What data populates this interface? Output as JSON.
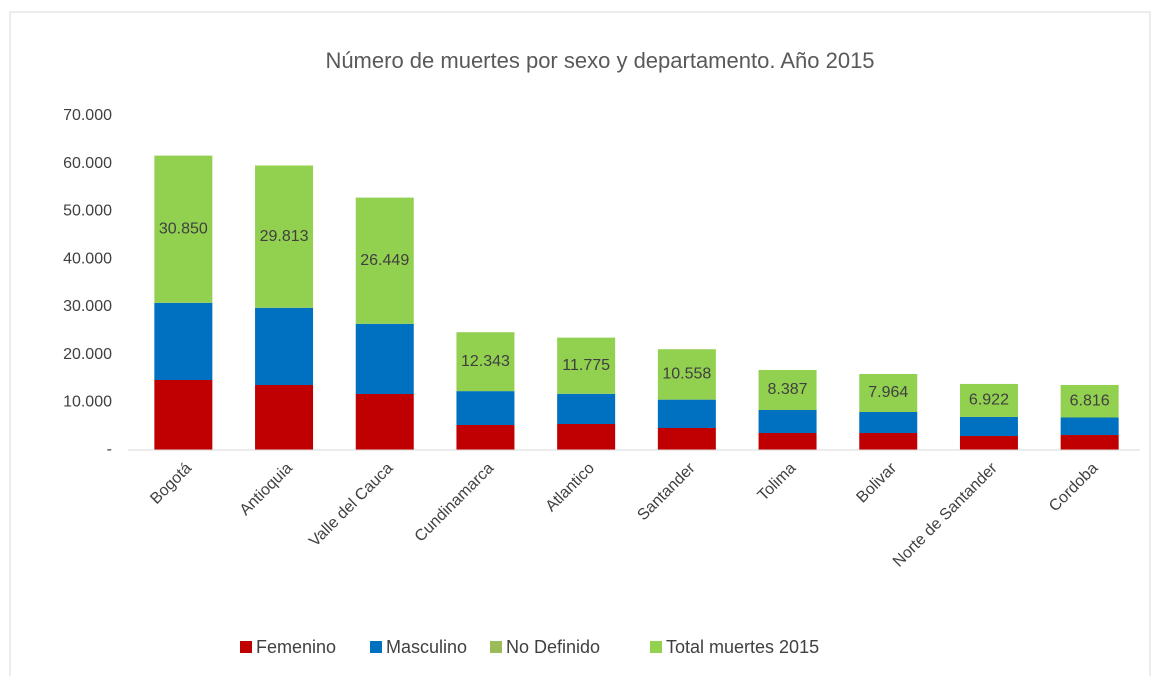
{
  "chart_data": {
    "type": "stacked_bar",
    "title": "Número de muertes por sexo y departamento. Año 2015",
    "categories": [
      "Bogotá",
      "Antioquia",
      "Valle del Cauca",
      "Cundinamarca",
      "Atlantico",
      "Santander",
      "Tolima",
      "Bolivar",
      "Norte de Santander",
      "Cordoba"
    ],
    "series": [
      {
        "name": "Femenino",
        "color": "#c00000",
        "values": [
          14670,
          13620,
          11740,
          5240,
          5450,
          4610,
          3560,
          3560,
          2930,
          3140
        ]
      },
      {
        "name": "Masculino",
        "color": "#0070c0",
        "values": [
          16175,
          16188,
          14705,
          7100,
          6322,
          5945,
          4824,
          4401,
          3989,
          3673
        ]
      },
      {
        "name": "No Definido",
        "color": "#9bbb59",
        "values": [
          5,
          5,
          4,
          3,
          3,
          3,
          3,
          3,
          3,
          3
        ]
      },
      {
        "name": "Total muertes 2015",
        "color": "#92d050",
        "values": [
          30850,
          29813,
          26449,
          12343,
          11775,
          10558,
          8387,
          7964,
          6922,
          6816
        ],
        "value_labels": [
          "30.850",
          "29.813",
          "26.449",
          "12.343",
          "11.775",
          "10.558",
          "8.387",
          "7.964",
          "6.922",
          "6.816"
        ]
      }
    ],
    "ylim": [
      0,
      70000
    ],
    "yticks": [
      {
        "value": 0,
        "label": "-"
      },
      {
        "value": 10000,
        "label": "10.000"
      },
      {
        "value": 20000,
        "label": "20.000"
      },
      {
        "value": 30000,
        "label": "30.000"
      },
      {
        "value": 40000,
        "label": "40.000"
      },
      {
        "value": 50000,
        "label": "50.000"
      },
      {
        "value": 60000,
        "label": "60.000"
      },
      {
        "value": 70000,
        "label": "70.000"
      }
    ],
    "legend": "bottom"
  }
}
